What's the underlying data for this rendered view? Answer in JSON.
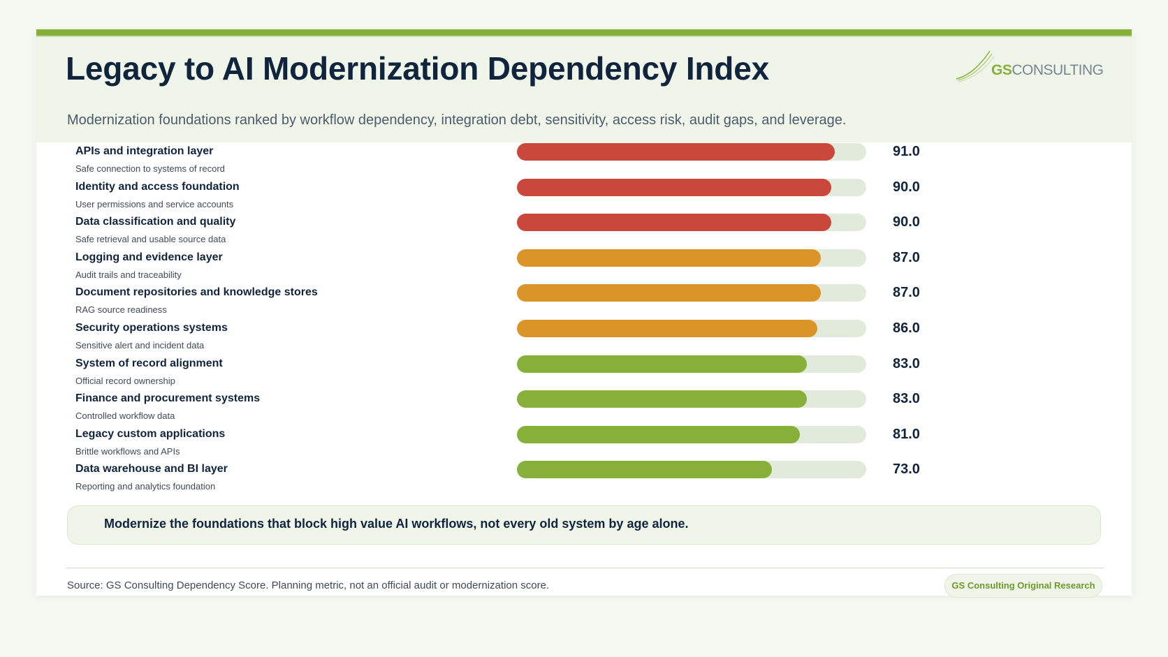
{
  "header": {
    "title": "Legacy to AI Modernization Dependency Index",
    "subtitle": "Modernization foundations ranked by workflow dependency, integration debt, sensitivity, access risk, audit gaps, and leverage."
  },
  "logo": {
    "part1": "GS",
    "part2": "CONSULTING"
  },
  "colors": {
    "high": "#c9473b",
    "medium": "#db9428",
    "low": "#86b03a",
    "track": "#e1eadb",
    "accent": "#86b03a"
  },
  "chart_data": {
    "type": "bar",
    "orientation": "horizontal",
    "xlim": [
      0,
      100
    ],
    "grid": false,
    "categories": [
      "APIs and integration layer",
      "Identity and access foundation",
      "Data classification and quality",
      "Logging and evidence layer",
      "Document repositories and knowledge stores",
      "Security operations systems",
      "System of record alignment",
      "Finance and procurement systems",
      "Legacy custom applications",
      "Data warehouse and BI layer"
    ],
    "descriptions": [
      "Safe connection to systems of record",
      "User permissions and service accounts",
      "Safe retrieval and usable source data",
      "Audit trails and traceability",
      "RAG source readiness",
      "Sensitive alert and incident data",
      "Official record ownership",
      "Controlled workflow data",
      "Brittle workflows and APIs",
      "Reporting and analytics foundation"
    ],
    "values": [
      91.0,
      90.0,
      90.0,
      87.0,
      87.0,
      86.0,
      83.0,
      83.0,
      81.0,
      73.0
    ],
    "value_labels": [
      "91.0",
      "90.0",
      "90.0",
      "87.0",
      "87.0",
      "86.0",
      "83.0",
      "83.0",
      "81.0",
      "73.0"
    ],
    "bar_colors": [
      "#c9473b",
      "#c9473b",
      "#c9473b",
      "#db9428",
      "#db9428",
      "#db9428",
      "#86b03a",
      "#86b03a",
      "#86b03a",
      "#86b03a"
    ]
  },
  "callout": {
    "text": "Modernize the foundations that block high value AI workflows, not every old system by age alone."
  },
  "footer": {
    "source": "Source: GS Consulting Dependency Score. Planning metric, not an official audit or modernization score.",
    "badge": "GS Consulting Original Research"
  }
}
